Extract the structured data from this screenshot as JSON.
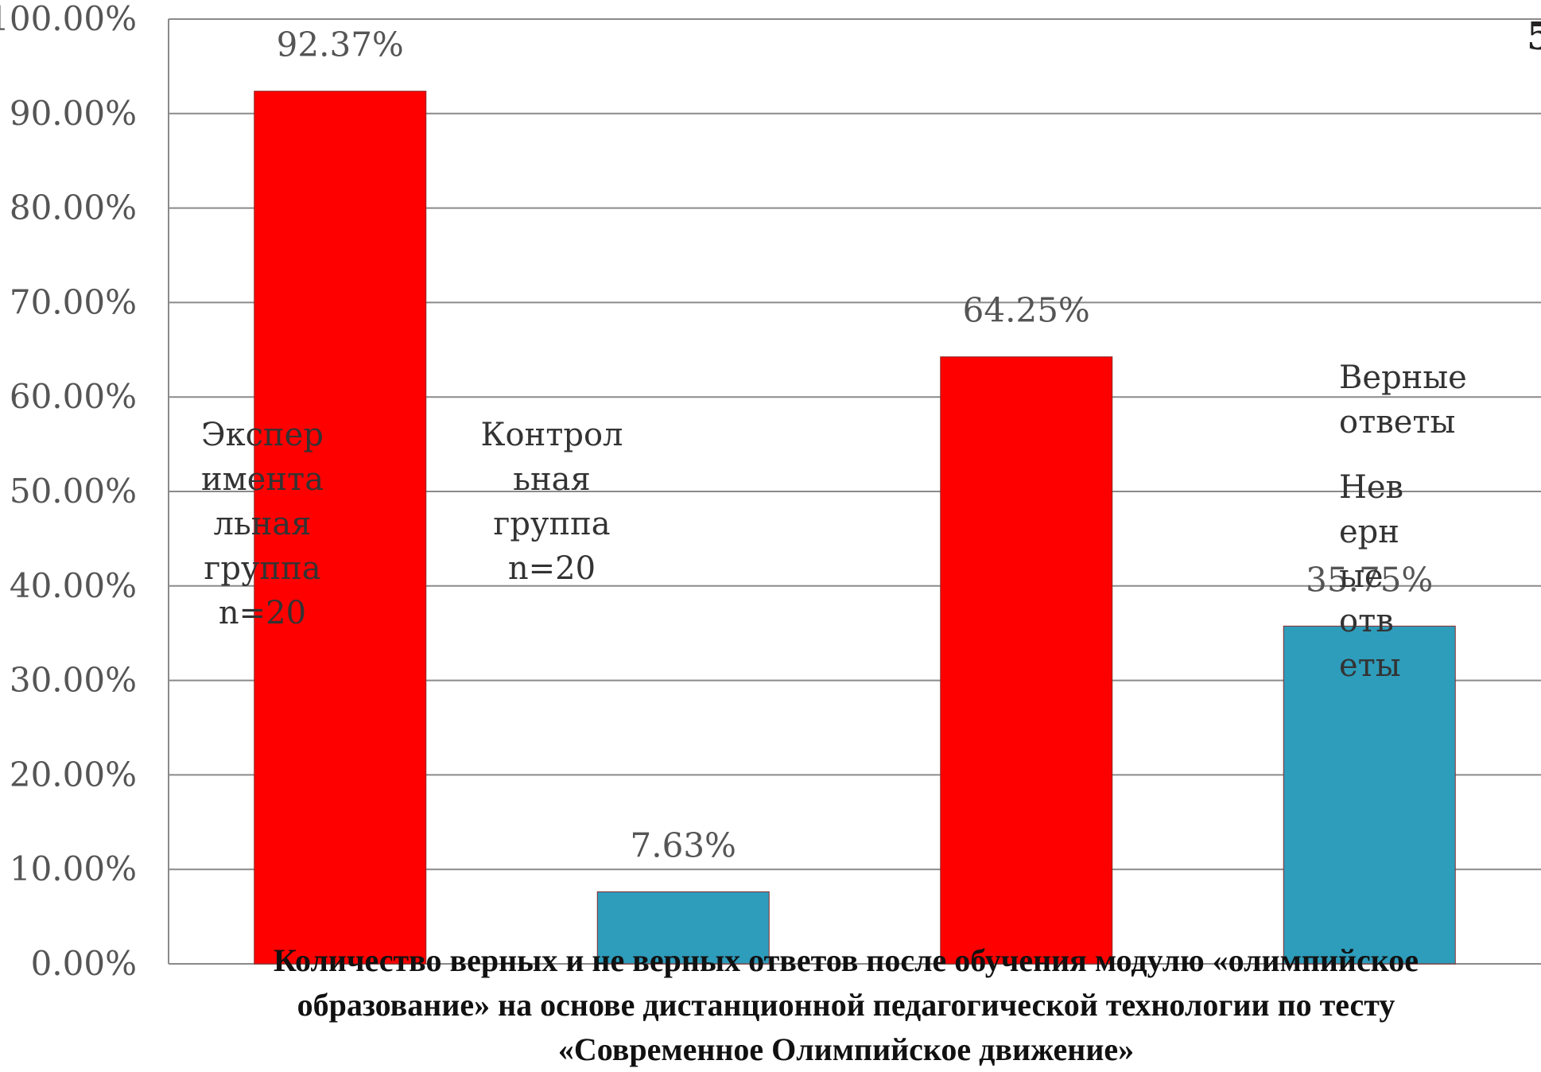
{
  "chart_data": {
    "type": "bar",
    "y_ticks": [
      "0.00%",
      "10.00%",
      "20.00%",
      "30.00%",
      "40.00%",
      "50.00%",
      "60.00%",
      "70.00%",
      "80.00%",
      "90.00%",
      "100.00%"
    ],
    "ylim": [
      0,
      100
    ],
    "grid": true,
    "bars": [
      {
        "value": 92.37,
        "label": "92.37%",
        "color": "#ff0000",
        "series": "Верные ответы"
      },
      {
        "value": 7.63,
        "label": "7.63%",
        "color": "#2e9cbb",
        "series": "Неверные ответы"
      },
      {
        "value": 64.25,
        "label": "64.25%",
        "color": "#ff0000",
        "series": "Верные ответы"
      },
      {
        "value": 35.75,
        "label": "35.75%",
        "color": "#2e9cbb",
        "series": "Неверные ответы"
      }
    ],
    "group_labels": [
      {
        "lines": [
          "Экспер",
          "имента",
          "льная",
          "группа",
          "n=20"
        ]
      },
      {
        "lines": [
          "Контрол",
          "ьная",
          "группа",
          "n=20"
        ]
      }
    ],
    "legend": [
      {
        "lines": [
          "Верные",
          "ответы"
        ],
        "color": "#ff0000"
      },
      {
        "lines": [
          "Нев",
          "ерн",
          "ые",
          "отв",
          "еты"
        ],
        "color": "#2e9cbb"
      }
    ],
    "legend_placement": "right"
  },
  "corner_text": "5",
  "caption": {
    "line1": "Количество верных и не верных ответов после обучения модулю «олимпийское",
    "line2": "образование» на основе дистанционной педагогической технологии по тесту",
    "line3": "«Современное Олимпийское движение»"
  }
}
